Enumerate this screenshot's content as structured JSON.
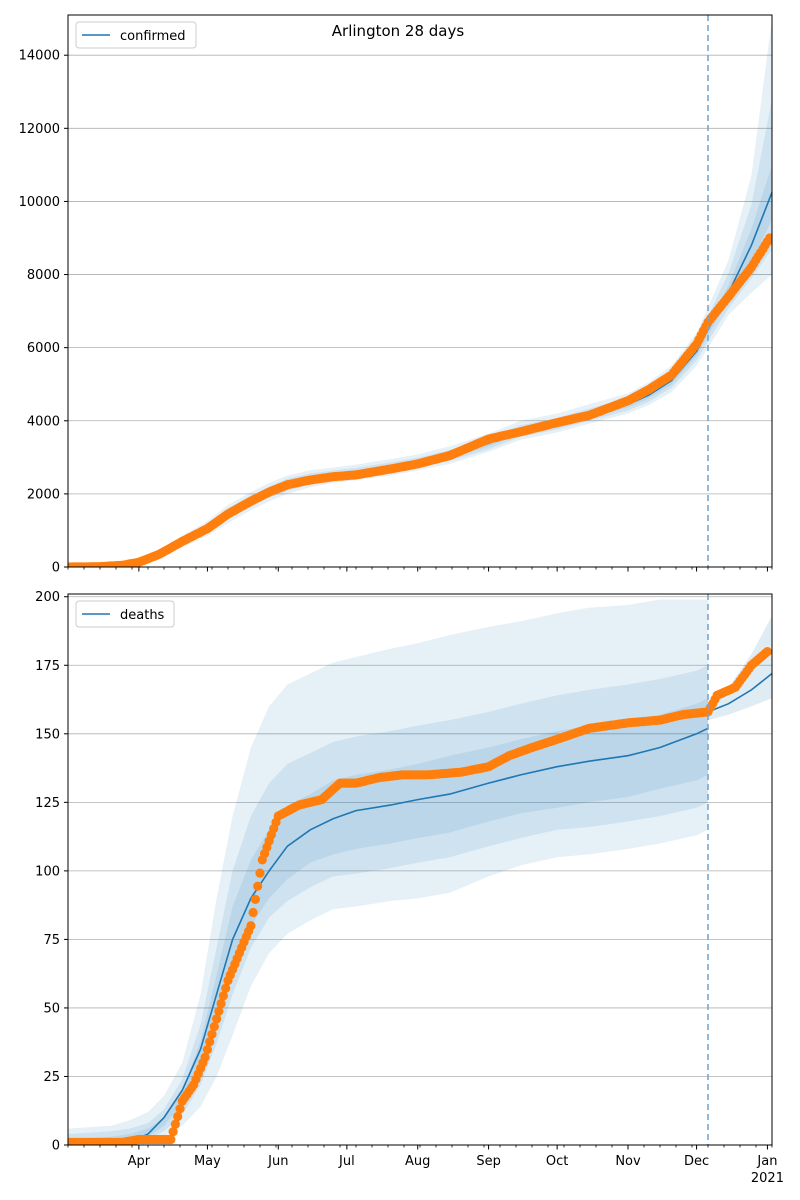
{
  "figure": {
    "title": "Arlington 28 days",
    "forecast_start": "2020-12-06"
  },
  "colors": {
    "model": "#1f77b4",
    "observed": "#ff7f0e",
    "band": "#1f77b4",
    "grid": "#b0b0b0",
    "forecast_line": "#7aa6cf"
  },
  "x_axis": {
    "range": [
      "2020-03-01",
      "2021-01-03"
    ],
    "tick_labels": [
      {
        "date": "2020-04-01",
        "label": "Apr"
      },
      {
        "date": "2020-05-01",
        "label": "May"
      },
      {
        "date": "2020-06-01",
        "label": "Jun"
      },
      {
        "date": "2020-07-01",
        "label": "Jul"
      },
      {
        "date": "2020-08-01",
        "label": "Aug"
      },
      {
        "date": "2020-09-01",
        "label": "Sep"
      },
      {
        "date": "2020-10-01",
        "label": "Oct"
      },
      {
        "date": "2020-11-01",
        "label": "Nov"
      },
      {
        "date": "2020-12-01",
        "label": "Dec"
      },
      {
        "date": "2021-01-01",
        "label": "Jan"
      }
    ],
    "year_label": "2021"
  },
  "chart_data": [
    {
      "type": "line",
      "legend": "confirmed",
      "legend_position": "top-left",
      "ylim": [
        0,
        15100
      ],
      "yticks": [
        0,
        2000,
        4000,
        6000,
        8000,
        10000,
        12000,
        14000
      ],
      "grid": "y",
      "model": {
        "x": [
          "2020-03-01",
          "2020-03-15",
          "2020-03-25",
          "2020-04-01",
          "2020-04-10",
          "2020-04-20",
          "2020-05-01",
          "2020-05-10",
          "2020-05-20",
          "2020-05-28",
          "2020-06-05",
          "2020-06-15",
          "2020-06-25",
          "2020-07-05",
          "2020-07-20",
          "2020-08-01",
          "2020-08-15",
          "2020-09-01",
          "2020-09-15",
          "2020-10-01",
          "2020-10-15",
          "2020-11-01",
          "2020-11-10",
          "2020-11-20",
          "2020-12-01",
          "2020-12-06",
          "2020-12-15",
          "2020-12-25",
          "2021-01-03"
        ],
        "y": [
          0,
          10,
          50,
          130,
          350,
          700,
          1050,
          1450,
          1800,
          2050,
          2250,
          2400,
          2500,
          2580,
          2720,
          2850,
          3050,
          3380,
          3720,
          3900,
          4150,
          4450,
          4700,
          5100,
          5900,
          6500,
          7500,
          8800,
          10250
        ],
        "bands": [
          {
            "lo": [
              0,
              0,
              30,
              90,
              250,
              550,
              850,
              1200,
              1550,
              1800,
              2000,
              2180,
              2300,
              2380,
              2500,
              2640,
              2820,
              3150,
              3480,
              3680,
              3920,
              4200,
              4430,
              4780,
              5500,
              6000,
              6900,
              7500,
              8000
            ],
            "hi": [
              20,
              30,
              80,
              200,
              450,
              850,
              1250,
              1700,
              2050,
              2300,
              2500,
              2650,
              2720,
              2800,
              2950,
              3080,
              3300,
              3650,
              4000,
              4200,
              4450,
              4750,
              5050,
              5500,
              6400,
              7100,
              8400,
              10700,
              15000
            ]
          },
          {
            "lo": [
              0,
              3,
              38,
              105,
              290,
              610,
              930,
              1300,
              1640,
              1900,
              2080,
              2260,
              2370,
              2450,
              2580,
              2710,
              2900,
              3220,
              3560,
              3760,
              4000,
              4280,
              4520,
              4900,
              5650,
              6180,
              7080,
              7900,
              8700
            ],
            "hi": [
              10,
              20,
              68,
              170,
              410,
              790,
              1170,
              1600,
              1960,
              2200,
              2420,
              2560,
              2640,
              2710,
              2860,
              2990,
              3200,
              3540,
              3880,
              4080,
              4330,
              4620,
              4900,
              5320,
              6200,
              6850,
              8050,
              9900,
              12800
            ]
          },
          {
            "lo": [
              0,
              6,
              44,
              117,
              320,
              655,
              990,
              1375,
              1720,
              1975,
              2165,
              2330,
              2435,
              2515,
              2650,
              2780,
              2975,
              3300,
              3640,
              3830,
              4075,
              4365,
              4610,
              4990,
              5775,
              6340,
              7290,
              8350,
              9500
            ],
            "hi": [
              5,
              15,
              58,
              148,
              385,
              745,
              1110,
              1525,
              1880,
              2125,
              2335,
              2470,
              2565,
              2645,
              2790,
              2920,
              3125,
              3460,
              3800,
              3970,
              4225,
              4535,
              4790,
              5210,
              6025,
              6660,
              7710,
              9250,
              11000
            ]
          }
        ]
      },
      "observed": {
        "x": [
          "2020-03-01",
          "2020-03-15",
          "2020-03-25",
          "2020-04-01",
          "2020-04-10",
          "2020-04-20",
          "2020-05-01",
          "2020-05-10",
          "2020-05-20",
          "2020-05-28",
          "2020-06-05",
          "2020-06-15",
          "2020-06-25",
          "2020-07-05",
          "2020-07-20",
          "2020-08-01",
          "2020-08-15",
          "2020-09-01",
          "2020-09-15",
          "2020-10-01",
          "2020-10-15",
          "2020-11-01",
          "2020-11-10",
          "2020-11-20",
          "2020-12-01",
          "2020-12-06",
          "2020-12-15",
          "2020-12-25",
          "2021-01-02"
        ],
        "y": [
          0,
          10,
          50,
          130,
          350,
          700,
          1050,
          1450,
          1800,
          2050,
          2250,
          2380,
          2470,
          2520,
          2680,
          2820,
          3050,
          3500,
          3700,
          3950,
          4150,
          4550,
          4850,
          5250,
          6100,
          6700,
          7400,
          8200,
          9000
        ]
      }
    },
    {
      "type": "line",
      "legend": "deaths",
      "legend_position": "top-left",
      "ylim": [
        0,
        201
      ],
      "yticks": [
        0,
        25,
        50,
        75,
        100,
        125,
        150,
        175,
        200
      ],
      "grid": "y",
      "model": {
        "x": [
          "2020-03-01",
          "2020-03-20",
          "2020-03-28",
          "2020-04-05",
          "2020-04-12",
          "2020-04-20",
          "2020-04-28",
          "2020-05-05",
          "2020-05-12",
          "2020-05-20",
          "2020-05-28",
          "2020-06-05",
          "2020-06-15",
          "2020-06-25",
          "2020-07-05",
          "2020-07-20",
          "2020-08-01",
          "2020-08-15",
          "2020-09-01",
          "2020-09-15",
          "2020-10-01",
          "2020-10-15",
          "2020-11-01",
          "2020-11-15",
          "2020-12-01",
          "2020-12-06"
        ],
        "y": [
          0,
          0,
          1,
          4,
          10,
          20,
          35,
          55,
          75,
          90,
          100,
          109,
          115,
          119,
          122,
          124,
          126,
          128,
          132,
          135,
          138,
          140,
          142,
          145,
          150,
          152
        ],
        "bands": [
          {
            "lo": [
              0,
              0,
              0,
              1,
              3,
              7,
              14,
              25,
              40,
              58,
              70,
              77,
              82,
              86,
              87,
              89,
              90,
              92,
              98,
              102,
              105,
              106,
              108,
              110,
              113,
              115
            ],
            "hi": [
              6,
              7,
              9,
              12,
              18,
              30,
              55,
              90,
              120,
              145,
              160,
              168,
              172,
              176,
              178,
              181,
              183,
              186,
              189,
              191,
              194,
              196,
              197,
              199,
              199,
              199
            ]
          },
          {
            "lo": [
              0,
              0,
              0,
              2,
              5,
              11,
              22,
              37,
              55,
              72,
              83,
              89,
              94,
              98,
              99,
              101,
              103,
              105,
              109,
              112,
              115,
              116,
              118,
              120,
              123,
              125
            ],
            "hi": [
              4,
              5,
              6,
              8,
              13,
              24,
              44,
              72,
              100,
              120,
              132,
              139,
              143,
              147,
              149,
              151,
              153,
              155,
              158,
              161,
              164,
              166,
              168,
              170,
              173,
              175
            ]
          },
          {
            "lo": [
              0,
              0,
              0,
              3,
              7,
              15,
              29,
              46,
              65,
              80,
              90,
              97,
              103,
              106,
              108,
              110,
              112,
              114,
              118,
              121,
              123,
              125,
              127,
              130,
              133,
              135
            ],
            "hi": [
              2,
              3,
              4,
              6,
              10,
              20,
              38,
              62,
              87,
              104,
              115,
              124,
              128,
              133,
              135,
              137,
              139,
              142,
              145,
              148,
              151,
              153,
              155,
              157,
              161,
              163
            ]
          }
        ]
      },
      "forecast": {
        "x": [
          "2020-12-06",
          "2020-12-15",
          "2020-12-25",
          "2021-01-03"
        ],
        "y": [
          158,
          161,
          166,
          172
        ],
        "band": {
          "lo": [
            155,
            157,
            160,
            163
          ],
          "hi": [
            161,
            167,
            179,
            193
          ]
        }
      },
      "observed": {
        "x": [
          "2020-03-01",
          "2020-03-25",
          "2020-04-01",
          "2020-04-10",
          "2020-04-15",
          "2020-04-20",
          "2020-04-25",
          "2020-04-30",
          "2020-05-05",
          "2020-05-10",
          "2020-05-15",
          "2020-05-20",
          "2020-05-25",
          "2020-06-01",
          "2020-06-10",
          "2020-06-20",
          "2020-06-28",
          "2020-07-05",
          "2020-07-15",
          "2020-07-25",
          "2020-08-05",
          "2020-08-20",
          "2020-09-01",
          "2020-09-10",
          "2020-09-20",
          "2020-10-01",
          "2020-10-15",
          "2020-11-01",
          "2020-11-15",
          "2020-11-25",
          "2020-12-06",
          "2020-12-10",
          "2020-12-18",
          "2020-12-25",
          "2021-01-01"
        ],
        "y": [
          1,
          1,
          2,
          2,
          2,
          16,
          22,
          32,
          46,
          60,
          70,
          80,
          104,
          120,
          124,
          126,
          132,
          132,
          134,
          135,
          135,
          136,
          138,
          142,
          145,
          148,
          152,
          154,
          155,
          157,
          158,
          164,
          167,
          175,
          180
        ]
      }
    }
  ]
}
